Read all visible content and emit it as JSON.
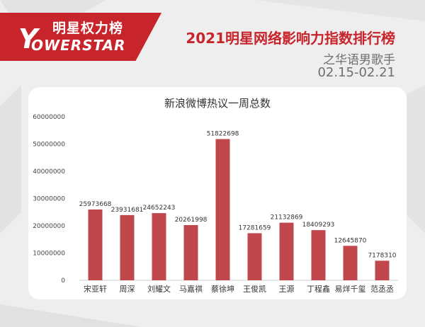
{
  "brand": {
    "name_cn": "明星权力榜",
    "name_en": "OWERSTAR",
    "mark_letter": "Y",
    "color": "#c8242b"
  },
  "header": {
    "title": "2021明星网络影响力指数排行榜",
    "subtitle": "之华语男歌手",
    "date_range": "02.15-02.21"
  },
  "chart_data": {
    "type": "bar",
    "title": "新浪微博热议一周总数",
    "categories": [
      "宋亚轩",
      "周深",
      "刘耀文",
      "马嘉祺",
      "蔡徐坤",
      "王俊凯",
      "王源",
      "丁程鑫",
      "易烊千玺",
      "范丞丞"
    ],
    "values": [
      25973668,
      23931681,
      24652243,
      20261998,
      51822698,
      17281659,
      21132869,
      18409293,
      12645870,
      7178310
    ],
    "ylim": [
      0,
      60000000
    ],
    "yticks": [
      0,
      10000000,
      20000000,
      30000000,
      40000000,
      50000000,
      60000000
    ],
    "grid": false,
    "bar_color": "#c0474c"
  }
}
